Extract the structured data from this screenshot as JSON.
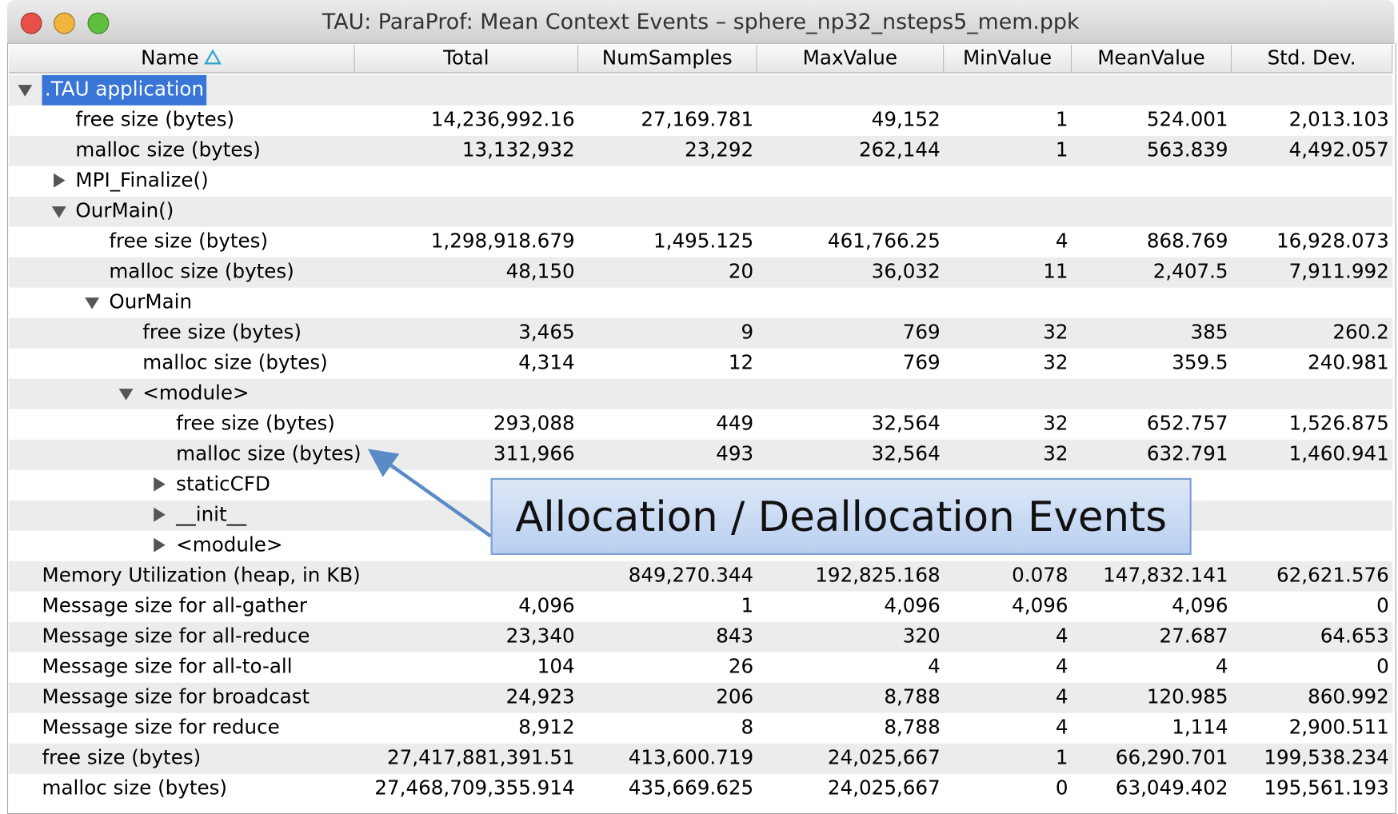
{
  "window": {
    "title": "TAU: ParaProf: Mean Context Events – sphere_np32_nsteps5_mem.ppk"
  },
  "table": {
    "columns": [
      "Name",
      "Total",
      "NumSamples",
      "MaxValue",
      "MinValue",
      "MeanValue",
      "Std. Dev."
    ],
    "rows": [
      {
        "name": ".TAU application",
        "level": 0,
        "expander": "expanded",
        "selected": true
      },
      {
        "name": "free size (bytes)",
        "level": 1,
        "values": [
          "14,236,992.16",
          "27,169.781",
          "49,152",
          "1",
          "524.001",
          "2,013.103"
        ]
      },
      {
        "name": "malloc size (bytes)",
        "level": 1,
        "values": [
          "13,132,932",
          "23,292",
          "262,144",
          "1",
          "563.839",
          "4,492.057"
        ]
      },
      {
        "name": "MPI_Finalize()",
        "level": 1,
        "expander": "collapsed"
      },
      {
        "name": "OurMain()",
        "level": 1,
        "expander": "expanded"
      },
      {
        "name": "free size (bytes)",
        "level": 2,
        "values": [
          "1,298,918.679",
          "1,495.125",
          "461,766.25",
          "4",
          "868.769",
          "16,928.073"
        ]
      },
      {
        "name": "malloc size (bytes)",
        "level": 2,
        "values": [
          "48,150",
          "20",
          "36,032",
          "11",
          "2,407.5",
          "7,911.992"
        ]
      },
      {
        "name": "OurMain",
        "level": 2,
        "expander": "expanded"
      },
      {
        "name": "free size (bytes)",
        "level": 3,
        "values": [
          "3,465",
          "9",
          "769",
          "32",
          "385",
          "260.2"
        ]
      },
      {
        "name": "malloc size (bytes)",
        "level": 3,
        "values": [
          "4,314",
          "12",
          "769",
          "32",
          "359.5",
          "240.981"
        ]
      },
      {
        "name": "<module>",
        "level": 3,
        "expander": "expanded"
      },
      {
        "name": "free size (bytes)",
        "level": 4,
        "values": [
          "293,088",
          "449",
          "32,564",
          "32",
          "652.757",
          "1,526.875"
        ]
      },
      {
        "name": "malloc size (bytes)",
        "level": 4,
        "values": [
          "311,966",
          "493",
          "32,564",
          "32",
          "632.791",
          "1,460.941"
        ]
      },
      {
        "name": "staticCFD",
        "level": 4,
        "expander": "collapsed"
      },
      {
        "name": "__init__",
        "level": 4,
        "expander": "collapsed"
      },
      {
        "name": "<module>",
        "level": 4,
        "expander": "collapsed"
      },
      {
        "name": "Memory Utilization (heap, in KB)",
        "level": 0,
        "values": [
          null,
          "849,270.344",
          "192,825.168",
          "0.078",
          "147,832.141",
          "62,621.576"
        ]
      },
      {
        "name": "Message size for all-gather",
        "level": 0,
        "values": [
          "4,096",
          "1",
          "4,096",
          "4,096",
          "4,096",
          "0"
        ]
      },
      {
        "name": "Message size for all-reduce",
        "level": 0,
        "values": [
          "23,340",
          "843",
          "320",
          "4",
          "27.687",
          "64.653"
        ]
      },
      {
        "name": "Message size for all-to-all",
        "level": 0,
        "values": [
          "104",
          "26",
          "4",
          "4",
          "4",
          "0"
        ]
      },
      {
        "name": "Message size for broadcast",
        "level": 0,
        "values": [
          "24,923",
          "206",
          "8,788",
          "4",
          "120.985",
          "860.992"
        ]
      },
      {
        "name": "Message size for reduce",
        "level": 0,
        "values": [
          "8,912",
          "8",
          "8,788",
          "4",
          "1,114",
          "2,900.511"
        ]
      },
      {
        "name": "free size (bytes)",
        "level": 0,
        "values": [
          "27,417,881,391.51",
          "413,600.719",
          "24,025,667",
          "1",
          "66,290.701",
          "199,538.234"
        ]
      },
      {
        "name": "malloc size (bytes)",
        "level": 0,
        "values": [
          "27,468,709,355.914",
          "435,669.625",
          "24,025,667",
          "0",
          "63,049.402",
          "195,561.193"
        ]
      }
    ]
  },
  "callout": {
    "text": "Allocation / Deallocation Events"
  }
}
